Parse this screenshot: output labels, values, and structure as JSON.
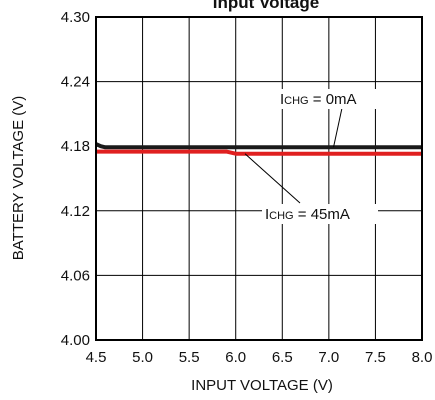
{
  "chart_data": {
    "type": "line",
    "title": "Input Voltage",
    "xlabel": "INPUT VOLTAGE (V)",
    "ylabel": "BATTERY VOLTAGE (V)",
    "xlim": [
      4.5,
      8.0
    ],
    "ylim": [
      4.0,
      4.3
    ],
    "x_ticks": [
      "4.5",
      "5.0",
      "5.5",
      "6.0",
      "6.5",
      "7.0",
      "7.5",
      "8.0"
    ],
    "y_ticks": [
      "4.30",
      "4.24",
      "4.18",
      "4.12",
      "4.06",
      "4.00"
    ],
    "grid": true,
    "series": [
      {
        "name": "ICHG = 0mA",
        "color": "#1a1a1a",
        "x": [
          4.5,
          4.55,
          4.6,
          8.0
        ],
        "y": [
          4.182,
          4.18,
          4.179,
          4.179
        ]
      },
      {
        "name": "ICHG = 45mA",
        "color": "#e02020",
        "x": [
          4.5,
          5.9,
          6.0,
          8.0
        ],
        "y": [
          4.175,
          4.175,
          4.173,
          4.173
        ]
      }
    ],
    "annotations": [
      {
        "prefix": "I",
        "sub": "CHG",
        "suffix": " = 0mA",
        "at": [
          7.05,
          4.179
        ]
      },
      {
        "prefix": "I",
        "sub": "CHG",
        "suffix": " = 45mA",
        "at": [
          6.1,
          4.173
        ]
      }
    ]
  }
}
